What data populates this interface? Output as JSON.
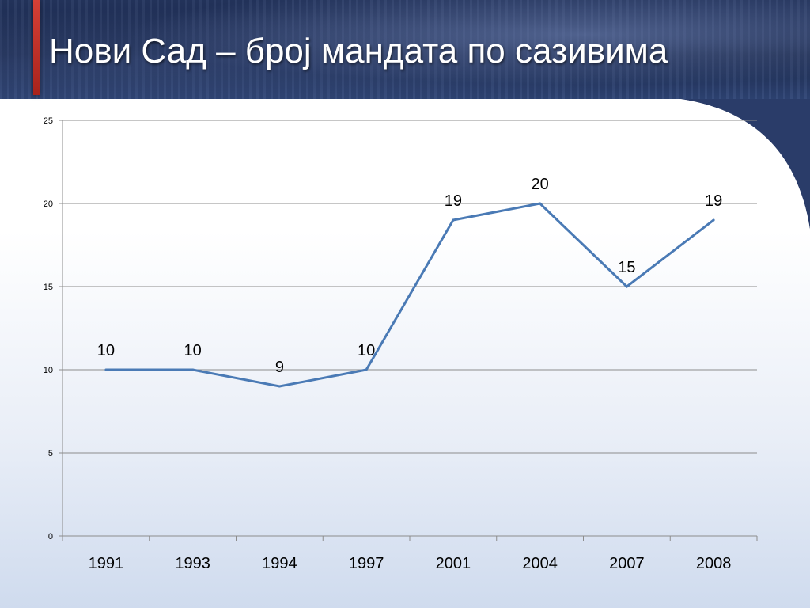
{
  "slide": {
    "title": "Нови Сад – број мандата по сазивима",
    "colors": {
      "header_band": "#1f2f57",
      "accent_bar": "#c8332b",
      "line": "#4a7ab5",
      "gridline": "#8c8c8c"
    }
  },
  "chart_data": {
    "type": "line",
    "title": "",
    "xlabel": "",
    "ylabel": "",
    "categories": [
      "1991",
      "1993",
      "1994",
      "1997",
      "2001",
      "2004",
      "2007",
      "2008"
    ],
    "series": [
      {
        "values": [
          10,
          10,
          9,
          10,
          19,
          20,
          15,
          19
        ]
      }
    ],
    "data_labels": [
      "10",
      "10",
      "9",
      "10",
      "19",
      "20",
      "15",
      "19"
    ],
    "ylim": [
      0,
      25
    ],
    "yticks": [
      0,
      5,
      10,
      15,
      20,
      25
    ],
    "grid": true,
    "legend": "none"
  }
}
